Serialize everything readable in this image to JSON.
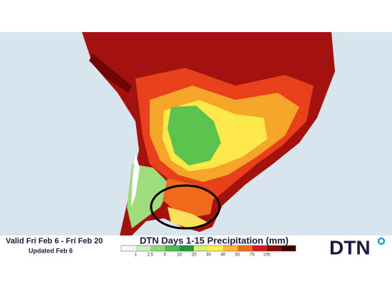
{
  "header": {
    "valid": "Valid Fri Feb 6 - Fri Feb 20",
    "updated": "Updated Feb 6"
  },
  "legend": {
    "title": "DTN Days 1-15 Precipitation (mm)",
    "ticks": [
      "1",
      "2.5",
      "5",
      "10",
      "20",
      "30",
      "40",
      "50",
      "75",
      "100"
    ],
    "colors": [
      "#f7f7f7",
      "#c8ecc0",
      "#8fd67f",
      "#4cbb4a",
      "#1f9a3a",
      "#d9ee6a",
      "#fff24a",
      "#ffb52e",
      "#f26a1b",
      "#d7191c",
      "#8c0a0a",
      "#3d0000"
    ]
  },
  "logo": {
    "text": "DTN"
  }
}
